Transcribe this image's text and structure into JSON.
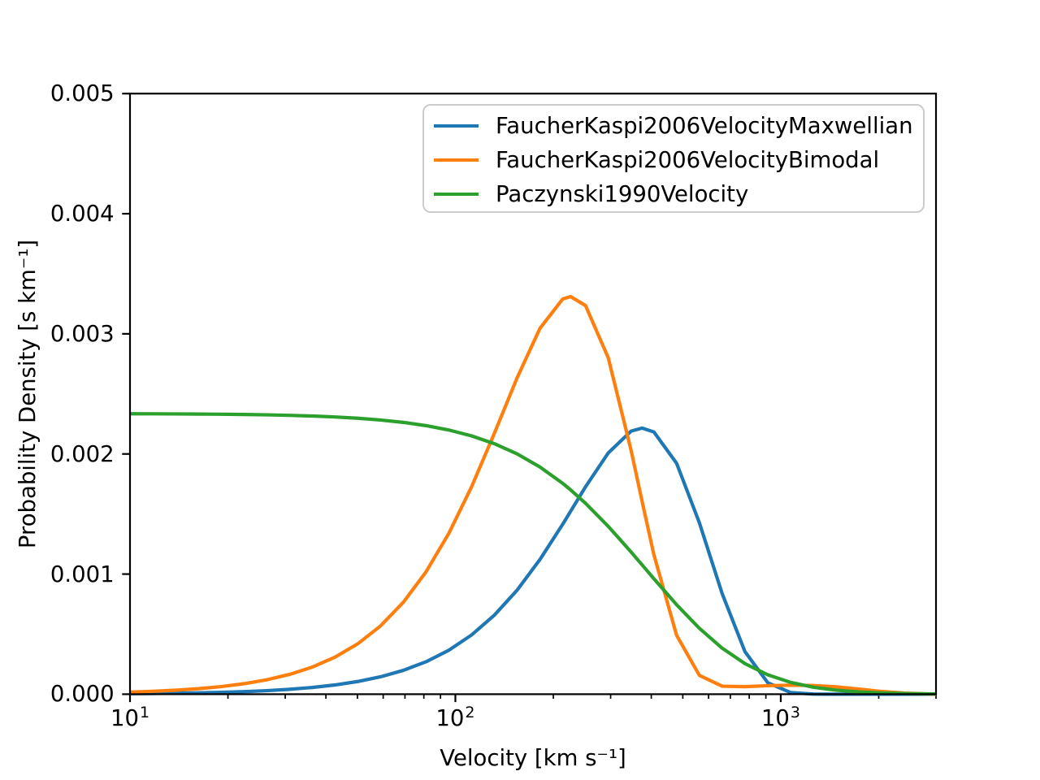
{
  "figure": {
    "background": "#ffffff",
    "frame_color": "#000000"
  },
  "chart_data": {
    "type": "line",
    "title": "",
    "xlabel": "Velocity [km s⁻¹]",
    "ylabel": "Probability Density [s km⁻¹]",
    "xscale": "log",
    "yscale": "linear",
    "grid": false,
    "xlim": [
      10,
      3000
    ],
    "ylim": [
      0,
      0.005
    ],
    "legend_position": "upper right",
    "xticks": [
      {
        "v": 10,
        "base": "10",
        "exp": "1"
      },
      {
        "v": 100,
        "base": "10",
        "exp": "2"
      },
      {
        "v": 1000,
        "base": "10",
        "exp": "3"
      }
    ],
    "xticks_minor": [
      20,
      30,
      40,
      50,
      60,
      70,
      80,
      90,
      200,
      300,
      400,
      500,
      600,
      700,
      800,
      900,
      2000,
      3000
    ],
    "yticks": [
      {
        "v": 0.0,
        "label": "0.000"
      },
      {
        "v": 0.001,
        "label": "0.001"
      },
      {
        "v": 0.002,
        "label": "0.002"
      },
      {
        "v": 0.003,
        "label": "0.003"
      },
      {
        "v": 0.004,
        "label": "0.004"
      },
      {
        "v": 0.005,
        "label": "0.005"
      }
    ],
    "x": [
      10,
      11.75,
      13.8,
      16.22,
      19.05,
      22.39,
      26.3,
      30.9,
      36.31,
      42.66,
      50.12,
      58.88,
      69.18,
      81.28,
      95.5,
      112.2,
      131.8,
      154.9,
      182,
      213.8,
      226,
      251.2,
      295.1,
      346.7,
      374.8,
      407.4,
      478.6,
      562.3,
      660.7,
      776.2,
      912,
      1071.5,
      1258.9,
      1479.1,
      1737.8,
      2041.7,
      2398.8,
      2818.4,
      3000
    ],
    "series": [
      {
        "name": "FaucherKaspi2006VelocityMaxwellian",
        "color": "#1f77b4",
        "values": [
          4.3e-06,
          5.9e-06,
          8.2e-06,
          1.13e-05,
          1.55e-05,
          2.14e-05,
          2.95e-05,
          4.07e-05,
          5.6e-05,
          7.7e-05,
          0.0001058,
          0.000145,
          0.0001983,
          0.0002702,
          0.0003665,
          0.0004935,
          0.0006583,
          0.0008672,
          0.0011218,
          0.0014154,
          0.0015224,
          0.0017268,
          0.0020088,
          0.0021899,
          0.0022152,
          0.002183,
          0.0019218,
          0.0014268,
          0.0008367,
          0.0003543,
          9.54e-05,
          1.39e-05,
          9e-07,
          0,
          0,
          0,
          0,
          0,
          0
        ]
      },
      {
        "name": "FaucherKaspi2006VelocityBimodal",
        "color": "#ff7f0e",
        "values": [
          1.75e-05,
          2.42e-05,
          3.33e-05,
          4.59e-05,
          6.32e-05,
          8.71e-05,
          0.0001198,
          0.0001645,
          0.0002255,
          0.0003082,
          0.0004197,
          0.0005686,
          0.0007649,
          0.0010191,
          0.0013396,
          0.001728,
          0.0021725,
          0.002636,
          0.0030463,
          0.0032903,
          0.0033102,
          0.0032354,
          0.0027996,
          0.0020315,
          0.0016059,
          0.0011622,
          0.0004899,
          0.0001566,
          6.64e-05,
          6.26e-05,
          7.06e-05,
          7.51e-05,
          7.24e-05,
          6.1e-05,
          4.25e-05,
          2.28e-05,
          8.6e-06,
          2e-06,
          9e-07
        ]
      },
      {
        "name": "Paczynski1990Velocity",
        "color": "#2ca02c",
        "values": [
          0.0023348,
          0.0023342,
          0.0023334,
          0.0023323,
          0.0023307,
          0.0023285,
          0.0023256,
          0.0023215,
          0.0023158,
          0.002308,
          0.0022974,
          0.0022828,
          0.0022629,
          0.0022358,
          0.0021993,
          0.0021503,
          0.0020854,
          0.0020002,
          0.0018911,
          0.0017548,
          0.0017011,
          0.0015894,
          0.0013971,
          0.0011841,
          0.0010769,
          0.0009616,
          0.0007448,
          0.0005482,
          0.0003831,
          0.0002548,
          0.0001618,
          9.87e-05,
          5.82e-05,
          3.34e-05,
          1.87e-05,
          1.03e-05,
          5.6e-06,
          3e-06,
          2.4e-06
        ]
      }
    ]
  }
}
